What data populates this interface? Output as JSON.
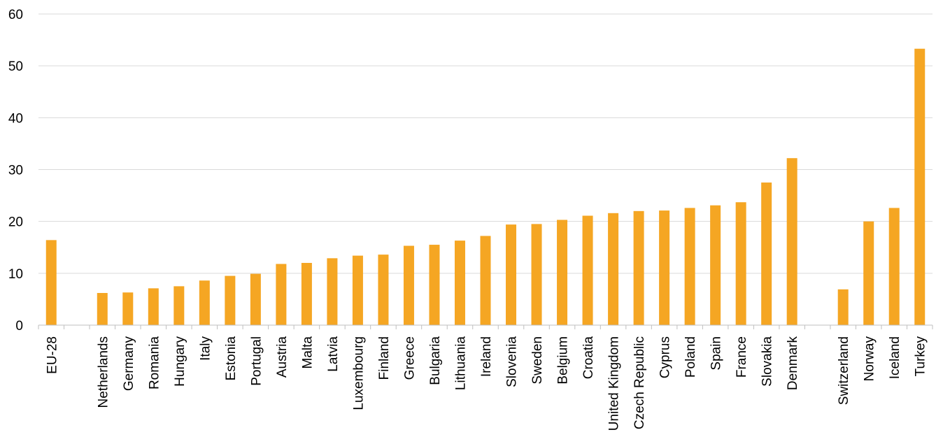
{
  "chart_data": {
    "type": "bar",
    "title": "",
    "xlabel": "",
    "ylabel": "",
    "ylim": [
      0,
      60
    ],
    "yticks": [
      0,
      10,
      20,
      30,
      40,
      50,
      60
    ],
    "grid": true,
    "legend": "none",
    "bar_color": "#F5A623",
    "categories": [
      "EU-28",
      "",
      "Netherlands",
      "Germany",
      "Romania",
      "Hungary",
      "Italy",
      "Estonia",
      "Portugal",
      "Austria",
      "Malta",
      "Latvia",
      "Luxembourg",
      "Finland",
      "Greece",
      "Bulgaria",
      "Lithuania",
      "Ireland",
      "Slovenia",
      "Sweden",
      "Belgium",
      "Croatia",
      "United Kingdom",
      "Czech Republic",
      "Cyprus",
      "Poland",
      "Spain",
      "France",
      "Slovakia",
      "Denmark",
      "",
      "Switzerland",
      "Norway",
      "Iceland",
      "Turkey"
    ],
    "values": [
      16.4,
      null,
      6.2,
      6.3,
      7.1,
      7.5,
      8.6,
      9.5,
      9.9,
      11.8,
      12.0,
      12.9,
      13.4,
      13.6,
      15.3,
      15.5,
      16.3,
      17.2,
      19.4,
      19.5,
      20.3,
      21.1,
      21.6,
      22.0,
      22.1,
      22.6,
      23.1,
      23.7,
      27.5,
      32.2,
      null,
      6.9,
      20.0,
      22.6,
      53.3
    ]
  }
}
